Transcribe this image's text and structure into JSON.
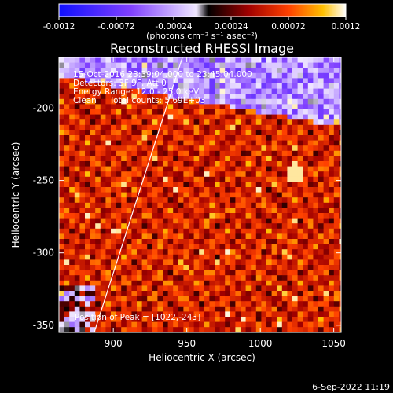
{
  "chart_data": {
    "type": "heatmap",
    "title": "Reconstructed RHESSI Image",
    "xlabel": "Heliocentric X (arcsec)",
    "ylabel": "Heliocentric Y (arcsec)",
    "xlim": [
      863,
      1055
    ],
    "ylim": [
      -355,
      -165
    ],
    "xticks": [
      900,
      950,
      1000,
      1050
    ],
    "yticks": [
      -200,
      -250,
      -300,
      -350
    ],
    "colorbar": {
      "min": -0.0012,
      "max": 0.0012,
      "ticks": [
        "-0.0012",
        "-0.00072",
        "-0.00024",
        "0.00024",
        "0.00072",
        "0.0012"
      ],
      "label": "(photons cm⁻² s⁻¹ asec⁻²)"
    },
    "annotations": [
      "15-Oct-2016 23:39:04.000 to 23:45:04.000",
      "Detectors: 3F 9F, Att 0",
      "Energy Range: 12.0 - 25.0 keV",
      "Clean     Total counts: 5.69E+03"
    ],
    "peak_label": "Position of Peak = [1022,-243]",
    "peak": [
      1022,
      -243
    ],
    "limb_line": [
      [
        887,
        -355
      ],
      [
        947,
        -165
      ]
    ],
    "footer": "6-Sep-2022 11:19",
    "colors": {
      "background": "#000000",
      "text": "#ffffff",
      "line": "#ffffff"
    }
  }
}
